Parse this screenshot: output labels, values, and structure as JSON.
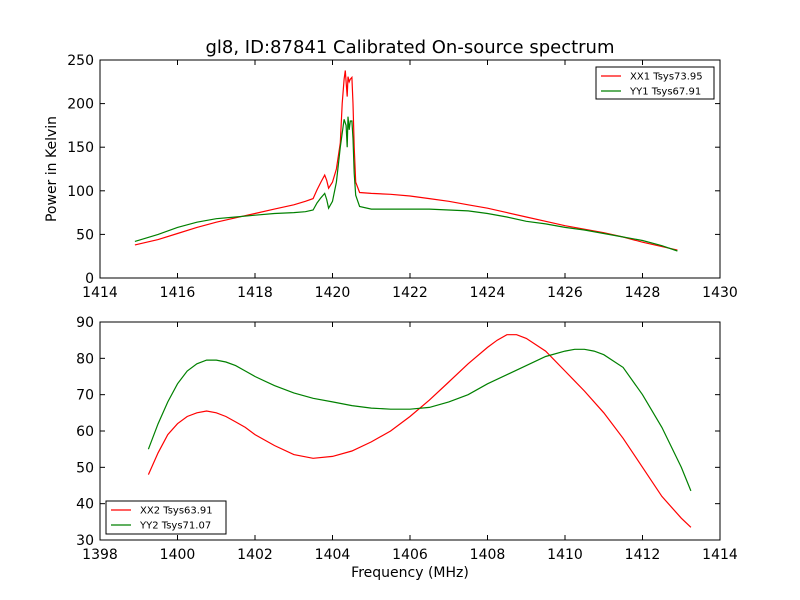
{
  "figure": {
    "title": "gl8, ID:87841 Calibrated On-source spectrum",
    "xlabel": "Frequency (MHz)",
    "ylabel": "Power in Kelvin"
  },
  "colors": {
    "red": "#ff0000",
    "green": "#008000"
  },
  "chart_data": [
    {
      "type": "line",
      "title": "gl8, ID:87841 Calibrated On-source spectrum",
      "ylabel": "Power in Kelvin",
      "xlabel": "",
      "xlim": [
        1414,
        1430
      ],
      "ylim": [
        0,
        250
      ],
      "xticks": [
        1414,
        1416,
        1418,
        1420,
        1422,
        1424,
        1426,
        1428,
        1430
      ],
      "yticks": [
        0,
        50,
        100,
        150,
        200,
        250
      ],
      "legend": "top-right",
      "grid": false,
      "series": [
        {
          "name": "XX1 Tsys73.95",
          "color": "#ff0000",
          "x": [
            1414.9,
            1415.5,
            1416,
            1416.5,
            1417,
            1417.5,
            1418,
            1418.5,
            1419,
            1419.3,
            1419.5,
            1419.6,
            1419.7,
            1419.8,
            1419.85,
            1419.9,
            1420.0,
            1420.1,
            1420.2,
            1420.25,
            1420.3,
            1420.33,
            1420.35,
            1420.38,
            1420.4,
            1420.43,
            1420.46,
            1420.5,
            1420.53,
            1420.56,
            1420.6,
            1420.7,
            1421,
            1421.5,
            1422,
            1422.5,
            1423,
            1423.5,
            1424,
            1424.5,
            1425,
            1425.5,
            1426,
            1426.5,
            1427,
            1427.5,
            1428,
            1428.5,
            1428.9
          ],
          "y": [
            38,
            44,
            51,
            58,
            64,
            69,
            74,
            79,
            84,
            88,
            91,
            101,
            110,
            118,
            112,
            103,
            110,
            125,
            155,
            200,
            228,
            238,
            225,
            208,
            231,
            225,
            228,
            230,
            200,
            150,
            110,
            98,
            97,
            96,
            94,
            91,
            88,
            84,
            80,
            75,
            70,
            65,
            60,
            56,
            52,
            47,
            41,
            36,
            32
          ]
        },
        {
          "name": "YY1 Tsys67.91",
          "color": "#008000",
          "x": [
            1414.9,
            1415.5,
            1416,
            1416.5,
            1417,
            1417.5,
            1418,
            1418.5,
            1419,
            1419.3,
            1419.5,
            1419.6,
            1419.7,
            1419.8,
            1419.85,
            1419.9,
            1420.0,
            1420.1,
            1420.2,
            1420.3,
            1420.35,
            1420.38,
            1420.4,
            1420.43,
            1420.46,
            1420.5,
            1420.53,
            1420.56,
            1420.6,
            1420.7,
            1421,
            1421.5,
            1422,
            1422.5,
            1423,
            1423.5,
            1424,
            1424.5,
            1425,
            1425.5,
            1426,
            1426.5,
            1427,
            1427.5,
            1428,
            1428.5,
            1428.9
          ],
          "y": [
            42,
            50,
            58,
            64,
            68,
            70,
            72,
            74,
            75,
            76,
            78,
            86,
            92,
            97,
            90,
            80,
            88,
            110,
            150,
            182,
            175,
            150,
            185,
            170,
            180,
            180,
            160,
            120,
            95,
            82,
            79,
            79,
            79,
            79,
            78,
            77,
            74,
            70,
            65,
            62,
            58,
            55,
            51,
            47,
            43,
            37,
            31
          ]
        }
      ]
    },
    {
      "type": "line",
      "title": "",
      "xlabel": "Frequency (MHz)",
      "ylabel": "",
      "xlim": [
        1398,
        1414
      ],
      "ylim": [
        30,
        90
      ],
      "xticks": [
        1398,
        1400,
        1402,
        1404,
        1406,
        1408,
        1410,
        1412,
        1414
      ],
      "yticks": [
        30,
        40,
        50,
        60,
        70,
        80,
        90
      ],
      "legend": "bottom-left",
      "grid": false,
      "series": [
        {
          "name": "XX2 Tsys63.91",
          "color": "#ff0000",
          "x": [
            1399.25,
            1399.5,
            1399.75,
            1400,
            1400.25,
            1400.5,
            1400.75,
            1401,
            1401.25,
            1401.5,
            1401.75,
            1402,
            1402.5,
            1403,
            1403.5,
            1404,
            1404.5,
            1405,
            1405.5,
            1406,
            1406.5,
            1407,
            1407.5,
            1408,
            1408.25,
            1408.5,
            1408.75,
            1409,
            1409.5,
            1410,
            1410.5,
            1411,
            1411.5,
            1412,
            1412.5,
            1413,
            1413.25
          ],
          "y": [
            48,
            54,
            59,
            62,
            64,
            65,
            65.5,
            65,
            64,
            62.5,
            61,
            59,
            56,
            53.5,
            52.5,
            53,
            54.5,
            57,
            60,
            64,
            68.5,
            73.5,
            78.5,
            83,
            85,
            86.5,
            86.5,
            85.5,
            82,
            76.5,
            71,
            65,
            58,
            50,
            42,
            36,
            33.5
          ]
        },
        {
          "name": "YY2 Tsys71.07",
          "color": "#008000",
          "x": [
            1399.25,
            1399.5,
            1399.75,
            1400,
            1400.25,
            1400.5,
            1400.75,
            1401,
            1401.25,
            1401.5,
            1401.75,
            1402,
            1402.5,
            1403,
            1403.5,
            1404,
            1404.5,
            1405,
            1405.5,
            1406,
            1406.5,
            1407,
            1407.5,
            1408,
            1408.5,
            1409,
            1409.5,
            1410,
            1410.25,
            1410.5,
            1410.75,
            1411,
            1411.5,
            1412,
            1412.5,
            1413,
            1413.25
          ],
          "y": [
            55,
            62,
            68,
            73,
            76.5,
            78.5,
            79.5,
            79.5,
            79,
            78,
            76.5,
            75,
            72.5,
            70.5,
            69,
            68,
            67,
            66.3,
            66,
            66,
            66.5,
            68,
            70,
            73,
            75.5,
            78,
            80.5,
            82,
            82.5,
            82.5,
            82,
            81,
            77.5,
            70,
            61,
            50,
            43.5
          ]
        }
      ]
    }
  ]
}
